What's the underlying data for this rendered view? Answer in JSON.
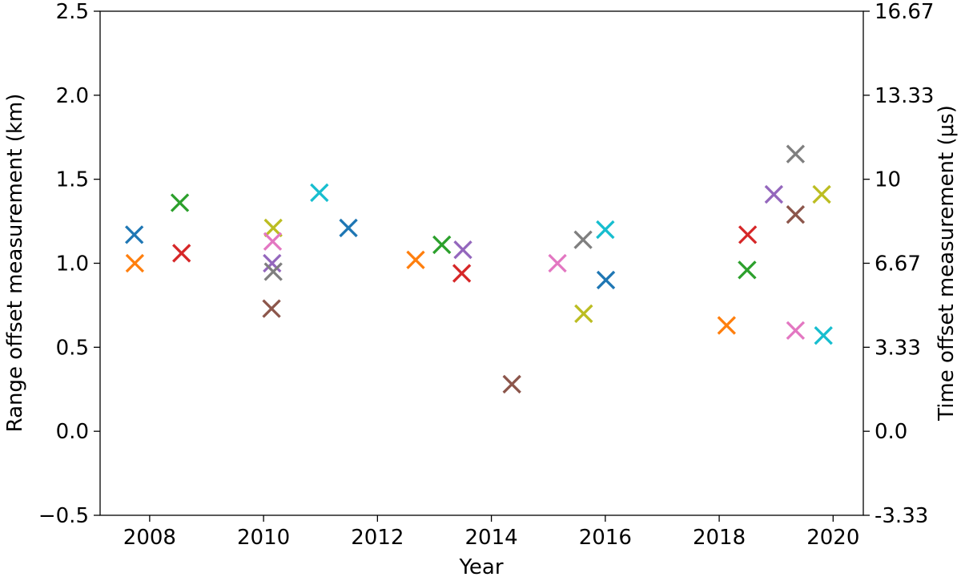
{
  "chart_data": {
    "type": "scatter",
    "marker": "x",
    "title": "",
    "xlabel": "Year",
    "ylabel_left": "Range offset measurement (km)",
    "ylabel_right": "Time offset measurement (μs)",
    "grid": false,
    "legend": null,
    "xlim": [
      2007.13,
      2020.53
    ],
    "ylim_left": [
      -0.5,
      2.5
    ],
    "ylim_right": [
      -3.33,
      16.67
    ],
    "x_ticks": {
      "values": [
        2008,
        2010,
        2012,
        2014,
        2016,
        2018,
        2020
      ],
      "labels": [
        "2008",
        "2010",
        "2012",
        "2014",
        "2016",
        "2018",
        "2020"
      ]
    },
    "y_ticks_left": {
      "values": [
        2.5,
        2.0,
        1.5,
        1.0,
        0.5,
        0.0,
        -0.5
      ],
      "labels": [
        "2.5",
        "2.0",
        "1.5",
        "1.0",
        "0.5",
        "0.0",
        "−0.5"
      ]
    },
    "y_ticks_right": {
      "values": [
        2.5,
        2.0,
        1.5,
        1.0,
        0.5,
        0.0,
        -0.5
      ],
      "labels": [
        "16.67",
        "13.33",
        "10",
        "6.67",
        "3.33",
        "0.0",
        "-3.33"
      ]
    },
    "unit_conversion_us_per_km": 6.667,
    "colors": {
      "blue": "#1f77b4",
      "orange": "#ff7f0e",
      "green": "#2ca02c",
      "red": "#d62728",
      "purple": "#9467bd",
      "brown": "#8c564b",
      "pink": "#e377c2",
      "gray": "#7f7f7f",
      "olive": "#bcbd22",
      "cyan": "#17becf"
    },
    "points": [
      {
        "year": 2007.73,
        "km": 1.17,
        "us": 7.8,
        "color": "blue"
      },
      {
        "year": 2007.74,
        "km": 1.0,
        "us": 6.67,
        "color": "orange"
      },
      {
        "year": 2008.53,
        "km": 1.36,
        "us": 9.07,
        "color": "green"
      },
      {
        "year": 2008.56,
        "km": 1.06,
        "us": 7.07,
        "color": "red"
      },
      {
        "year": 2010.17,
        "km": 1.21,
        "us": 8.07,
        "color": "olive"
      },
      {
        "year": 2010.16,
        "km": 1.13,
        "us": 7.53,
        "color": "pink"
      },
      {
        "year": 2010.15,
        "km": 1.0,
        "us": 6.67,
        "color": "purple"
      },
      {
        "year": 2010.17,
        "km": 0.95,
        "us": 6.33,
        "color": "gray"
      },
      {
        "year": 2010.14,
        "km": 0.73,
        "us": 4.87,
        "color": "brown"
      },
      {
        "year": 2010.98,
        "km": 1.42,
        "us": 9.47,
        "color": "cyan"
      },
      {
        "year": 2011.49,
        "km": 1.21,
        "us": 8.07,
        "color": "blue"
      },
      {
        "year": 2012.67,
        "km": 1.02,
        "us": 6.8,
        "color": "orange"
      },
      {
        "year": 2013.13,
        "km": 1.11,
        "us": 7.4,
        "color": "green"
      },
      {
        "year": 2013.5,
        "km": 1.08,
        "us": 7.2,
        "color": "purple"
      },
      {
        "year": 2013.48,
        "km": 0.94,
        "us": 6.27,
        "color": "red"
      },
      {
        "year": 2014.36,
        "km": 0.28,
        "us": 1.87,
        "color": "brown"
      },
      {
        "year": 2015.16,
        "km": 1.0,
        "us": 6.67,
        "color": "pink"
      },
      {
        "year": 2015.61,
        "km": 1.14,
        "us": 7.6,
        "color": "gray"
      },
      {
        "year": 2015.62,
        "km": 0.7,
        "us": 4.67,
        "color": "olive"
      },
      {
        "year": 2016.0,
        "km": 1.2,
        "us": 8.0,
        "color": "cyan"
      },
      {
        "year": 2016.01,
        "km": 0.9,
        "us": 6.0,
        "color": "blue"
      },
      {
        "year": 2018.13,
        "km": 0.63,
        "us": 4.2,
        "color": "orange"
      },
      {
        "year": 2018.5,
        "km": 1.17,
        "us": 7.8,
        "color": "red"
      },
      {
        "year": 2018.49,
        "km": 0.96,
        "us": 6.4,
        "color": "green"
      },
      {
        "year": 2018.96,
        "km": 1.41,
        "us": 9.4,
        "color": "purple"
      },
      {
        "year": 2019.34,
        "km": 1.65,
        "us": 11.0,
        "color": "gray"
      },
      {
        "year": 2019.34,
        "km": 1.29,
        "us": 8.6,
        "color": "brown"
      },
      {
        "year": 2019.34,
        "km": 0.6,
        "us": 4.0,
        "color": "pink"
      },
      {
        "year": 2019.8,
        "km": 1.41,
        "us": 9.4,
        "color": "olive"
      },
      {
        "year": 2019.83,
        "km": 0.57,
        "us": 3.8,
        "color": "cyan"
      }
    ]
  }
}
